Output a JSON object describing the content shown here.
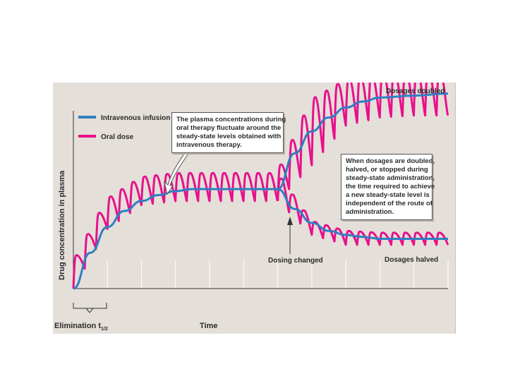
{
  "chart_data": {
    "type": "line",
    "ylabel": "Drug concentration in plasma",
    "xlabel": "Time",
    "xlim": [
      0,
      11
    ],
    "ylim": [
      0,
      1.0
    ],
    "legend_position": "top-left",
    "dosing_changed_at": 6.0,
    "series": [
      {
        "name": "Intravenous infusion",
        "color": "#2f7fc1",
        "kind": "smooth",
        "segments": [
          {
            "label": "",
            "x": [
              0,
              0.5,
              1,
              1.5,
              2,
              2.5,
              3,
              3.5,
              4,
              5,
              6
            ],
            "y": [
              0.0,
              0.18,
              0.31,
              0.39,
              0.44,
              0.47,
              0.49,
              0.5,
              0.5,
              0.5,
              0.5
            ]
          },
          {
            "label": "Dosages doubled",
            "x": [
              6,
              6.5,
              7,
              7.5,
              8,
              8.5,
              9,
              10,
              11
            ],
            "y": [
              0.5,
              0.68,
              0.79,
              0.86,
              0.91,
              0.94,
              0.96,
              0.97,
              0.98
            ]
          },
          {
            "label": "Dosages halved",
            "x": [
              6,
              6.5,
              7,
              7.5,
              8,
              8.5,
              9,
              10,
              11
            ],
            "y": [
              0.5,
              0.4,
              0.33,
              0.29,
              0.27,
              0.26,
              0.25,
              0.25,
              0.25
            ]
          }
        ]
      },
      {
        "name": "Oral dose",
        "color": "#e8108c",
        "kind": "sawtooth",
        "segments": [
          {
            "label": "",
            "x0": 0,
            "x1": 6,
            "dose_interval": 0.333,
            "peak": [
              0.13,
              0.45,
              0.56,
              0.58,
              0.58,
              0.58,
              0.58
            ],
            "trough": [
              0.0,
              0.3,
              0.42,
              0.44,
              0.44,
              0.44,
              0.44
            ]
          },
          {
            "label": "Dosages doubled",
            "x0": 6,
            "x1": 11,
            "dose_interval": 0.333,
            "peak": [
              0.58,
              0.95,
              1.05,
              1.08,
              1.09,
              1.09
            ],
            "trough": [
              0.44,
              0.62,
              0.82,
              0.86,
              0.87,
              0.87
            ]
          },
          {
            "label": "Dosages halved",
            "x0": 6,
            "x1": 11,
            "dose_interval": 0.333,
            "peak": [
              0.58,
              0.34,
              0.29,
              0.28,
              0.28,
              0.28
            ],
            "trough": [
              0.44,
              0.27,
              0.22,
              0.22,
              0.22,
              0.22
            ]
          }
        ]
      }
    ],
    "annotations": {
      "dosages_doubled": "Dosages doubled",
      "dosages_halved": "Dosages halved",
      "dosing_changed": "Dosing changed",
      "elimination_half_life": "Elimination t",
      "elimination_half_life_sub": "1/2",
      "callout_oral": [
        "The plasma concentrations during",
        "oral therapy fluctuate around the",
        "steady-state levels obtained with",
        "intravenous therapy."
      ],
      "callout_dose_change": [
        "When dosages are doubled,",
        "halved, or stopped during",
        "steady-state administration,",
        "the time required to achieve",
        "a new steady-state level is",
        "independent of the route of",
        "administration."
      ]
    }
  }
}
